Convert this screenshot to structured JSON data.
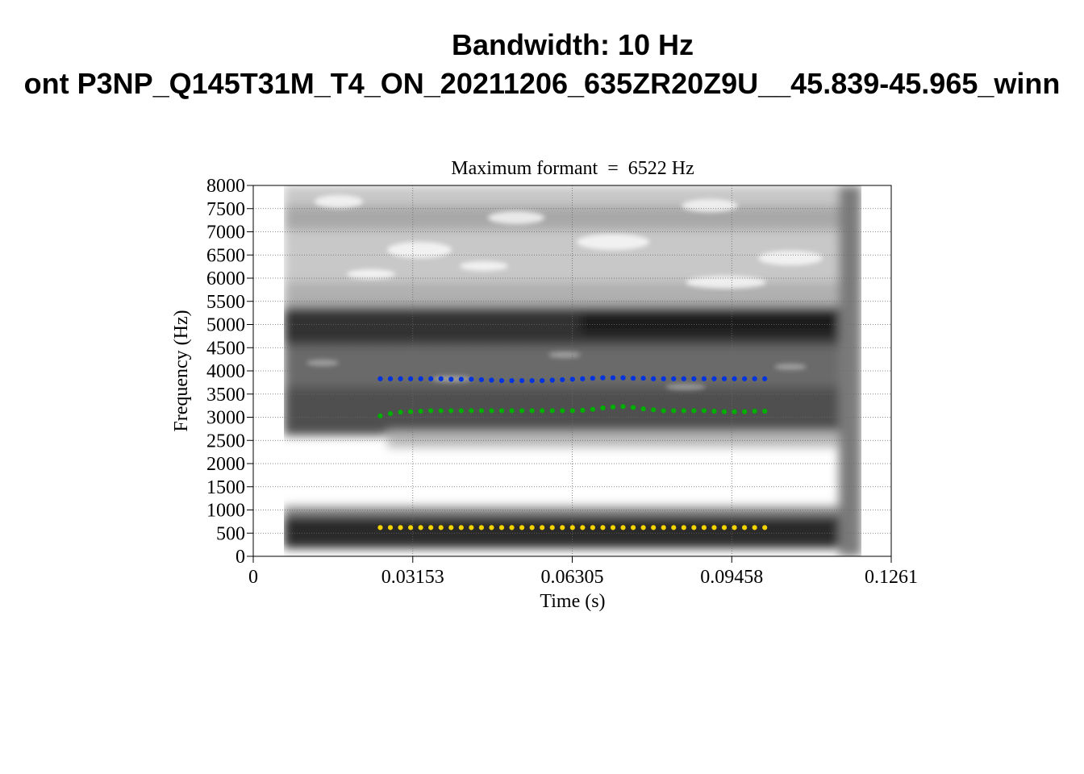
{
  "figure": {
    "title": "Bandwidth: 10 Hz",
    "subtitle": "ont P3NP_Q145T31M_T4_ON_20211206_635ZR20Z9U__45.839-45.965_winn"
  },
  "chart_data": {
    "type": "scatter",
    "title": "Maximum formant  =  6522 Hz",
    "xlabel": "Time (s)",
    "ylabel": "Frequency (Hz)",
    "xlim": [
      0,
      0.1261
    ],
    "ylim": [
      0,
      8000
    ],
    "x_ticks": [
      0,
      0.03153,
      0.06305,
      0.09458,
      0.1261
    ],
    "x_tick_labels": [
      "0",
      "0.03153",
      "0.06305",
      "0.09458",
      "0.1261"
    ],
    "y_ticks": [
      0,
      500,
      1000,
      1500,
      2000,
      2500,
      3000,
      3500,
      4000,
      4500,
      5000,
      5500,
      6000,
      6500,
      7000,
      7500,
      8000
    ],
    "y_tick_labels": [
      "0",
      "500",
      "1000",
      "1500",
      "2000",
      "2500",
      "3000",
      "3500",
      "4000",
      "4500",
      "5000",
      "5500",
      "6000",
      "6500",
      "7000",
      "7500",
      "8000"
    ],
    "grid": true,
    "background": "grayscale spectrogram",
    "spectrogram_time_range": [
      0.0062,
      0.1199
    ],
    "x": [
      0.0251,
      0.0271,
      0.0291,
      0.0311,
      0.0331,
      0.0351,
      0.0371,
      0.0391,
      0.0411,
      0.0431,
      0.0451,
      0.0471,
      0.0491,
      0.0511,
      0.0531,
      0.0551,
      0.0571,
      0.0591,
      0.0611,
      0.0631,
      0.0651,
      0.0671,
      0.0691,
      0.0711,
      0.0731,
      0.0751,
      0.0771,
      0.0791,
      0.0811,
      0.0831,
      0.0851,
      0.0871,
      0.0891,
      0.0911,
      0.0931,
      0.0951,
      0.0971,
      0.0991,
      0.1011
    ],
    "series": [
      {
        "color": "#f2d300",
        "values": [
          620,
          620,
          620,
          620,
          620,
          620,
          620,
          620,
          620,
          620,
          620,
          620,
          620,
          620,
          620,
          620,
          620,
          620,
          620,
          620,
          620,
          620,
          620,
          620,
          620,
          620,
          620,
          620,
          620,
          620,
          620,
          620,
          620,
          620,
          620,
          620,
          620,
          620,
          620
        ]
      },
      {
        "color": "#00b000",
        "values": [
          3030,
          3080,
          3110,
          3120,
          3130,
          3140,
          3140,
          3140,
          3140,
          3140,
          3140,
          3140,
          3140,
          3140,
          3140,
          3140,
          3140,
          3140,
          3140,
          3140,
          3150,
          3170,
          3200,
          3220,
          3230,
          3210,
          3180,
          3160,
          3140,
          3140,
          3140,
          3140,
          3140,
          3130,
          3120,
          3120,
          3120,
          3130,
          3130
        ]
      },
      {
        "color": "#0033dd",
        "values": [
          3830,
          3830,
          3830,
          3830,
          3830,
          3830,
          3830,
          3820,
          3820,
          3820,
          3810,
          3800,
          3790,
          3790,
          3790,
          3790,
          3790,
          3800,
          3810,
          3820,
          3830,
          3840,
          3850,
          3850,
          3850,
          3840,
          3840,
          3830,
          3830,
          3830,
          3830,
          3830,
          3830,
          3830,
          3830,
          3830,
          3830,
          3830,
          3830
        ]
      }
    ]
  }
}
